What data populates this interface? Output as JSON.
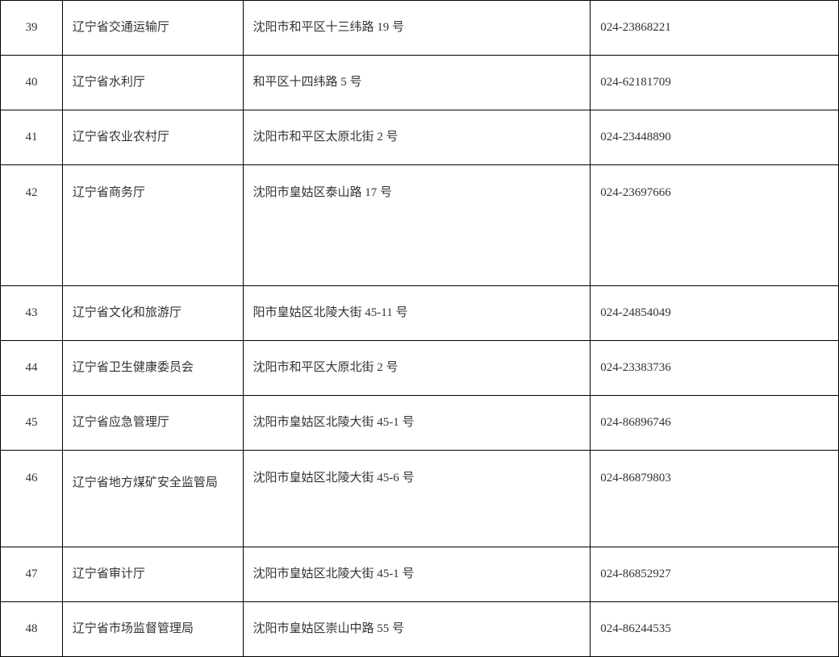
{
  "table": {
    "columns": {
      "num_width": 75,
      "name_width": 218,
      "addr_width": 420,
      "phone_width": 300
    },
    "rows": [
      {
        "num": "39",
        "name": "辽宁省交通运输厅",
        "addr": "沈阳市和平区十三纬路 19 号",
        "phone": "024-23868221",
        "height": "normal"
      },
      {
        "num": "40",
        "name": "辽宁省水利厅",
        "addr": "和平区十四纬路 5 号",
        "phone": "024-62181709",
        "height": "normal"
      },
      {
        "num": "41",
        "name": "辽宁省农业农村厅",
        "addr": "沈阳市和平区太原北街 2 号",
        "phone": "024-23448890",
        "height": "normal"
      },
      {
        "num": "42",
        "name": "辽宁省商务厅",
        "addr": "沈阳市皇姑区泰山路 17 号",
        "phone": "024-23697666",
        "height": "tall"
      },
      {
        "num": "43",
        "name": "辽宁省文化和旅游厅",
        "addr": "阳市皇姑区北陵大街 45-11 号",
        "phone": "024-24854049",
        "height": "normal"
      },
      {
        "num": "44",
        "name": "辽宁省卫生健康委员会",
        "addr": "沈阳市和平区大原北街 2 号",
        "phone": "024-23383736",
        "height": "normal"
      },
      {
        "num": "45",
        "name": "辽宁省应急管理厅",
        "addr": "沈阳市皇姑区北陵大街 45-1 号",
        "phone": "024-86896746",
        "height": "normal"
      },
      {
        "num": "46",
        "name": "辽宁省地方煤矿安全监管局",
        "addr": "沈阳市皇姑区北陵大街 45-6 号",
        "phone": "024-86879803",
        "height": "double"
      },
      {
        "num": "47",
        "name": "辽宁省审计厅",
        "addr": "沈阳市皇姑区北陵大街 45-1 号",
        "phone": "024-86852927",
        "height": "normal"
      },
      {
        "num": "48",
        "name": "辽宁省市场监督管理局",
        "addr": "沈阳市皇姑区崇山中路 55 号",
        "phone": "024-86244535",
        "height": "normal"
      }
    ],
    "styling": {
      "border_color": "#000000",
      "text_color": "#333333",
      "background_color": "#ffffff",
      "font_family": "SimSun",
      "font_size_pt": 11
    }
  }
}
